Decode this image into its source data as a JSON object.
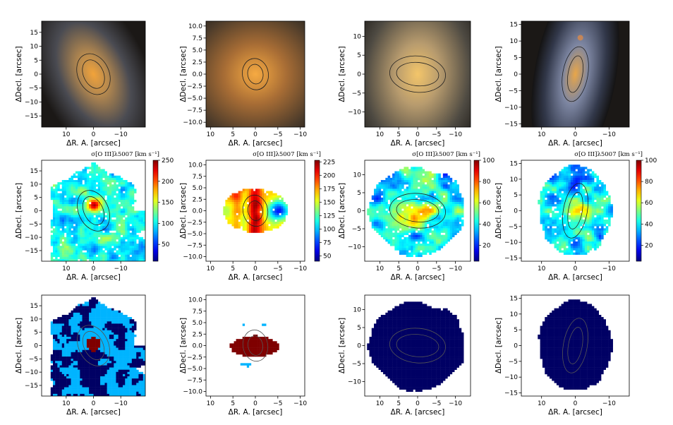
{
  "figure": {
    "xlabel": "ΔR. A. [arcsec]",
    "ylabel": "ΔDecl. [arcsec]"
  },
  "colors": {
    "axis": "#000000",
    "ellipse": "#222222",
    "classA": "#00B4FF",
    "classB": "#000064",
    "classC": "#7F0000"
  },
  "chart_data": [
    {
      "type": "image",
      "panel": "r1c1",
      "content": "color-image",
      "colorscale": "none",
      "xlim": [
        19,
        -19
      ],
      "ylim": [
        -19,
        19
      ],
      "xticks": [
        10,
        0,
        -10
      ],
      "yticks": [
        15,
        10,
        5,
        0,
        -5,
        -10,
        -15
      ],
      "ellipses": [
        {
          "a": 5.5,
          "b": 3.6,
          "angle": 25
        },
        {
          "a": 7.8,
          "b": 5.6,
          "angle": 25
        }
      ],
      "title": "",
      "xlabel": "ΔR. A. [arcsec]",
      "ylabel": "ΔDecl. [arcsec]"
    },
    {
      "type": "image",
      "panel": "r1c2",
      "content": "color-image",
      "colorscale": "none",
      "xlim": [
        11,
        -11
      ],
      "ylim": [
        -11,
        11
      ],
      "xticks": [
        10,
        5,
        0,
        -5,
        -10
      ],
      "yticks": [
        10.0,
        7.5,
        5.0,
        2.5,
        0.0,
        -2.5,
        -5.0,
        -7.5,
        -10.0
      ],
      "ellipses": [
        {
          "a": 2.2,
          "b": 1.6,
          "angle": 10
        },
        {
          "a": 3.5,
          "b": 2.7,
          "angle": 10
        }
      ],
      "title": "",
      "xlabel": "ΔR. A. [arcsec]",
      "ylabel": "ΔDecl. [arcsec]"
    },
    {
      "type": "image",
      "panel": "r1c3",
      "content": "color-image",
      "colorscale": "none",
      "xlim": [
        14,
        -14
      ],
      "ylim": [
        -14,
        14
      ],
      "xticks": [
        10,
        5,
        0,
        -5,
        -10
      ],
      "yticks": [
        10,
        5,
        0,
        -5,
        -10
      ],
      "ellipses": [
        {
          "a": 5.6,
          "b": 3.1,
          "angle": 85
        },
        {
          "a": 7.4,
          "b": 4.8,
          "angle": 85
        }
      ],
      "title": "",
      "xlabel": "ΔR. A. [arcsec]",
      "ylabel": "ΔDecl. [arcsec]"
    },
    {
      "type": "image",
      "panel": "r1c4",
      "content": "color-image",
      "colorscale": "none",
      "xlim": [
        16,
        -16
      ],
      "ylim": [
        -16,
        16
      ],
      "xticks": [
        10,
        0,
        -10
      ],
      "yticks": [
        15,
        10,
        5,
        0,
        -5,
        -10,
        -15
      ],
      "ellipses": [
        {
          "a": 5.5,
          "b": 2.2,
          "angle": -10
        },
        {
          "a": 8.2,
          "b": 3.8,
          "angle": -10
        }
      ],
      "title": "",
      "xlabel": "ΔR. A. [arcsec]",
      "ylabel": "ΔDecl. [arcsec]"
    },
    {
      "type": "heatmap",
      "panel": "r2c1",
      "content": "velocity-dispersion-map",
      "colorscale": "jet",
      "xlim": [
        19,
        -19
      ],
      "ylim": [
        -19,
        19
      ],
      "xticks": [
        10,
        0,
        -10
      ],
      "yticks": [
        15,
        10,
        5,
        0,
        -5,
        -10,
        -15
      ],
      "ellipses": [
        {
          "a": 5.5,
          "b": 3.6,
          "angle": 25
        },
        {
          "a": 7.8,
          "b": 5.6,
          "angle": 25
        }
      ],
      "cbar": {
        "min": 10,
        "max": 250,
        "ticks": [
          50,
          100,
          150,
          200,
          250
        ],
        "label": "σ[O III]λ5007 [km s⁻¹]"
      },
      "title": "",
      "xlabel": "ΔR. A. [arcsec]",
      "ylabel": "ΔDecl. [arcsec]"
    },
    {
      "type": "heatmap",
      "panel": "r2c2",
      "content": "velocity-dispersion-map",
      "colorscale": "jet",
      "xlim": [
        11,
        -11
      ],
      "ylim": [
        -11,
        11
      ],
      "xticks": [
        10,
        5,
        0,
        -5,
        -10
      ],
      "yticks": [
        10.0,
        7.5,
        5.0,
        2.5,
        0.0,
        -2.5,
        -5.0,
        -7.5,
        -10.0
      ],
      "ellipses": [
        {
          "a": 2.2,
          "b": 1.6,
          "angle": 10
        },
        {
          "a": 3.5,
          "b": 2.7,
          "angle": 10
        }
      ],
      "cbar": {
        "min": 40,
        "max": 228,
        "ticks": [
          50,
          75,
          100,
          125,
          150,
          175,
          200,
          225
        ],
        "label": "σ[O III]λ5007 [km s⁻¹]"
      },
      "title": "",
      "xlabel": "ΔR. A. [arcsec]",
      "ylabel": "ΔDecl. [arcsec]"
    },
    {
      "type": "heatmap",
      "panel": "r2c3",
      "content": "velocity-dispersion-map",
      "colorscale": "jet",
      "xlim": [
        14,
        -14
      ],
      "ylim": [
        -14,
        14
      ],
      "xticks": [
        10,
        5,
        0,
        -5,
        -10
      ],
      "yticks": [
        10,
        5,
        0,
        -5,
        -10
      ],
      "ellipses": [
        {
          "a": 5.6,
          "b": 3.1,
          "angle": 85
        },
        {
          "a": 7.4,
          "b": 4.8,
          "angle": 85
        }
      ],
      "cbar": {
        "min": 5,
        "max": 100,
        "ticks": [
          20,
          40,
          60,
          80,
          100
        ],
        "label": "σ[O III]λ5007 [km s⁻¹]"
      },
      "title": "",
      "xlabel": "ΔR. A. [arcsec]",
      "ylabel": "ΔDecl. [arcsec]"
    },
    {
      "type": "heatmap",
      "panel": "r2c4",
      "content": "velocity-dispersion-map",
      "colorscale": "jet",
      "xlim": [
        16,
        -16
      ],
      "ylim": [
        -16,
        16
      ],
      "xticks": [
        10,
        0,
        -10
      ],
      "yticks": [
        15,
        10,
        5,
        0,
        -5,
        -10,
        -15
      ],
      "ellipses": [
        {
          "a": 5.5,
          "b": 2.2,
          "angle": -10
        },
        {
          "a": 8.2,
          "b": 3.8,
          "angle": -10
        }
      ],
      "cbar": {
        "min": 5,
        "max": 100,
        "ticks": [
          20,
          40,
          60,
          80,
          100
        ],
        "label": "σ[O III]λ5007 [km s⁻¹]"
      },
      "title": "",
      "xlabel": "ΔR. A. [arcsec]",
      "ylabel": "ΔDecl. [arcsec]"
    },
    {
      "type": "heatmap",
      "panel": "r3c1",
      "content": "classification-map",
      "colorscale": "categorical",
      "xlim": [
        19,
        -19
      ],
      "ylim": [
        -19,
        19
      ],
      "xticks": [
        10,
        0,
        -10
      ],
      "yticks": [
        15,
        10,
        5,
        0,
        -5,
        -10,
        -15
      ],
      "ellipses": [
        {
          "a": 5.5,
          "b": 3.6,
          "angle": 25
        },
        {
          "a": 7.8,
          "b": 5.6,
          "angle": 25
        }
      ],
      "title": "",
      "xlabel": "ΔR. A. [arcsec]",
      "ylabel": "ΔDecl. [arcsec]"
    },
    {
      "type": "heatmap",
      "panel": "r3c2",
      "content": "classification-map",
      "colorscale": "categorical",
      "xlim": [
        11,
        -11
      ],
      "ylim": [
        -11,
        11
      ],
      "xticks": [
        10,
        5,
        0,
        -5,
        -10
      ],
      "yticks": [
        10.0,
        7.5,
        5.0,
        2.5,
        0.0,
        -2.5,
        -5.0,
        -7.5,
        -10.0
      ],
      "ellipses": [
        {
          "a": 2.2,
          "b": 1.6,
          "angle": 10
        },
        {
          "a": 3.5,
          "b": 2.7,
          "angle": 10
        }
      ],
      "title": "",
      "xlabel": "ΔR. A. [arcsec]",
      "ylabel": "ΔDecl. [arcsec]"
    },
    {
      "type": "heatmap",
      "panel": "r3c3",
      "content": "classification-map",
      "colorscale": "categorical",
      "xlim": [
        14,
        -14
      ],
      "ylim": [
        -14,
        14
      ],
      "xticks": [
        10,
        5,
        0,
        -5,
        -10
      ],
      "yticks": [
        10,
        5,
        0,
        -5,
        -10
      ],
      "ellipses": [
        {
          "a": 5.6,
          "b": 3.1,
          "angle": 85
        },
        {
          "a": 7.4,
          "b": 4.8,
          "angle": 85
        }
      ],
      "title": "",
      "xlabel": "ΔR. A. [arcsec]",
      "ylabel": "ΔDecl. [arcsec]"
    },
    {
      "type": "heatmap",
      "panel": "r3c4",
      "content": "classification-map",
      "colorscale": "categorical",
      "xlim": [
        16,
        -16
      ],
      "ylim": [
        -16,
        16
      ],
      "xticks": [
        10,
        0,
        -10
      ],
      "yticks": [
        15,
        10,
        5,
        0,
        -5,
        -10,
        -15
      ],
      "ellipses": [
        {
          "a": 5.5,
          "b": 2.2,
          "angle": -10
        },
        {
          "a": 8.2,
          "b": 3.8,
          "angle": -10
        }
      ],
      "title": "",
      "xlabel": "ΔR. A. [arcsec]",
      "ylabel": "ΔDecl. [arcsec]"
    }
  ]
}
